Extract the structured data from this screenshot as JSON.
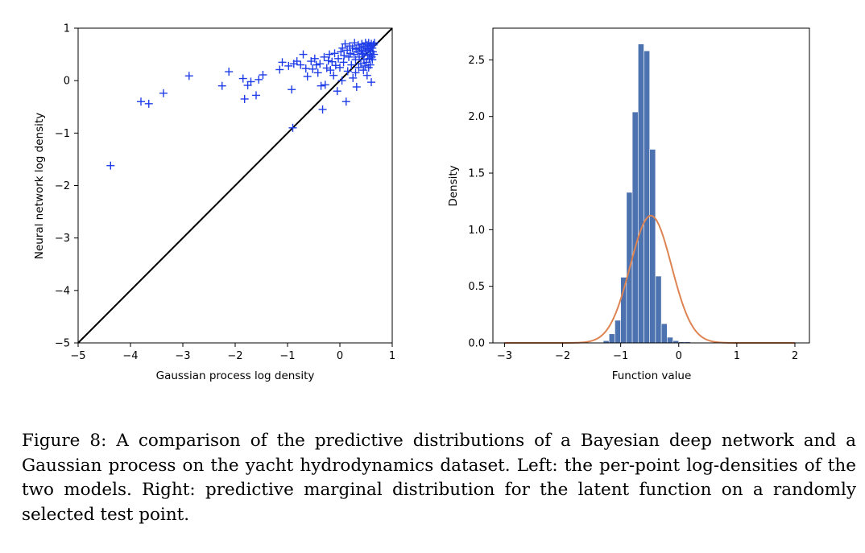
{
  "chart_data": [
    {
      "type": "scatter",
      "xlabel": "Gaussian process log density",
      "ylabel": "Neural network log density",
      "xlim": [
        -5,
        1
      ],
      "ylim": [
        -5,
        1
      ],
      "xticks": [
        -5,
        -4,
        -3,
        -2,
        -1,
        0,
        1
      ],
      "yticks": [
        -5,
        -4,
        -3,
        -2,
        -1,
        0,
        1
      ],
      "marker": "+",
      "marker_color": "#1f3de8",
      "reference_line": {
        "x": [
          -5,
          1
        ],
        "y": [
          -5,
          1
        ],
        "color": "#000000"
      },
      "grid": false,
      "points": [
        [
          -4.38,
          -1.62
        ],
        [
          -3.8,
          -0.4
        ],
        [
          -3.65,
          -0.44
        ],
        [
          -3.37,
          -0.24
        ],
        [
          -2.88,
          0.09
        ],
        [
          -2.25,
          -0.1
        ],
        [
          -2.12,
          0.17
        ],
        [
          -1.85,
          0.04
        ],
        [
          -1.82,
          -0.35
        ],
        [
          -1.76,
          -0.09
        ],
        [
          -1.7,
          -0.02
        ],
        [
          -1.6,
          -0.28
        ],
        [
          -1.55,
          0.02
        ],
        [
          -1.47,
          0.11
        ],
        [
          -1.15,
          0.21
        ],
        [
          -1.1,
          0.35
        ],
        [
          -0.98,
          0.28
        ],
        [
          -0.92,
          -0.17
        ],
        [
          -0.9,
          -0.9
        ],
        [
          -0.88,
          0.32
        ],
        [
          -0.82,
          0.37
        ],
        [
          -0.75,
          0.3
        ],
        [
          -0.7,
          0.5
        ],
        [
          -0.65,
          0.23
        ],
        [
          -0.62,
          0.08
        ],
        [
          -0.55,
          0.37
        ],
        [
          -0.52,
          0.22
        ],
        [
          -0.48,
          0.42
        ],
        [
          -0.45,
          0.3
        ],
        [
          -0.42,
          0.15
        ],
        [
          -0.38,
          0.32
        ],
        [
          -0.36,
          -0.1
        ],
        [
          -0.33,
          -0.55
        ],
        [
          -0.3,
          0.45
        ],
        [
          -0.28,
          -0.08
        ],
        [
          -0.25,
          0.24
        ],
        [
          -0.22,
          0.38
        ],
        [
          -0.2,
          0.5
        ],
        [
          -0.18,
          0.2
        ],
        [
          -0.15,
          0.36
        ],
        [
          -0.12,
          0.1
        ],
        [
          -0.1,
          0.52
        ],
        [
          -0.08,
          0.29
        ],
        [
          -0.05,
          -0.2
        ],
        [
          -0.03,
          0.42
        ],
        [
          0.0,
          0.25
        ],
        [
          0.02,
          0.55
        ],
        [
          0.04,
          0.0
        ],
        [
          0.05,
          0.62
        ],
        [
          0.07,
          0.35
        ],
        [
          0.08,
          0.48
        ],
        [
          0.1,
          0.7
        ],
        [
          0.12,
          -0.4
        ],
        [
          0.14,
          0.58
        ],
        [
          0.15,
          0.18
        ],
        [
          0.17,
          0.45
        ],
        [
          0.19,
          0.66
        ],
        [
          0.2,
          0.52
        ],
        [
          0.22,
          0.3
        ],
        [
          0.24,
          0.62
        ],
        [
          0.25,
          0.05
        ],
        [
          0.27,
          0.5
        ],
        [
          0.28,
          0.72
        ],
        [
          0.3,
          0.4
        ],
        [
          0.31,
          0.6
        ],
        [
          0.32,
          -0.12
        ],
        [
          0.34,
          0.55
        ],
        [
          0.35,
          0.68
        ],
        [
          0.37,
          0.45
        ],
        [
          0.38,
          0.62
        ],
        [
          0.4,
          0.32
        ],
        [
          0.41,
          0.58
        ],
        [
          0.42,
          0.7
        ],
        [
          0.44,
          0.5
        ],
        [
          0.45,
          0.65
        ],
        [
          0.46,
          0.4
        ],
        [
          0.48,
          0.62
        ],
        [
          0.49,
          0.72
        ],
        [
          0.5,
          0.55
        ],
        [
          0.51,
          0.35
        ],
        [
          0.52,
          0.68
        ],
        [
          0.53,
          0.48
        ],
        [
          0.54,
          0.6
        ],
        [
          0.55,
          0.72
        ],
        [
          0.56,
          0.42
        ],
        [
          0.57,
          0.58
        ],
        [
          0.58,
          0.66
        ],
        [
          0.59,
          0.5
        ],
        [
          0.6,
          0.7
        ],
        [
          0.61,
          0.45
        ],
        [
          0.62,
          0.62
        ],
        [
          0.63,
          0.55
        ],
        [
          0.64,
          0.68
        ],
        [
          0.65,
          0.5
        ],
        [
          0.66,
          0.72
        ],
        [
          0.6,
          -0.03
        ],
        [
          0.52,
          0.1
        ],
        [
          0.45,
          0.2
        ],
        [
          0.36,
          0.25
        ],
        [
          0.3,
          0.15
        ],
        [
          0.58,
          0.3
        ],
        [
          0.62,
          0.4
        ],
        [
          0.48,
          0.28
        ],
        [
          0.42,
          0.52
        ],
        [
          0.55,
          0.25
        ]
      ]
    },
    {
      "type": "bar",
      "subtype": "histogram_with_density_curve",
      "xlabel": "Function value",
      "ylabel": "Density",
      "xlim": [
        -3.2,
        2.25
      ],
      "ylim": [
        0,
        2.78
      ],
      "xticks": [
        -3,
        -2,
        -1,
        0,
        1,
        2
      ],
      "yticks": [
        0.0,
        0.5,
        1.0,
        1.5,
        2.0,
        2.5
      ],
      "ytick_labels": [
        "0.0",
        "0.5",
        "1.0",
        "1.5",
        "2.0",
        "2.5"
      ],
      "grid": false,
      "histogram": {
        "color": "#4c72b0",
        "bin_edges": [
          -1.3,
          -1.2,
          -1.1,
          -1.0,
          -0.9,
          -0.8,
          -0.7,
          -0.6,
          -0.5,
          -0.4,
          -0.3,
          -0.2,
          -0.1,
          0.0,
          0.1,
          0.2
        ],
        "values": [
          0.02,
          0.08,
          0.2,
          0.58,
          1.33,
          2.04,
          2.64,
          2.58,
          1.71,
          0.59,
          0.17,
          0.05,
          0.02,
          0.01,
          0.01
        ]
      },
      "density_curve": {
        "color": "#dd8452",
        "mean": -0.48,
        "std": 0.355
      }
    }
  ],
  "caption": {
    "text": "Figure 8:   A comparison of the predictive distributions of a Bayesian deep network and a Gaussian process on the yacht hydrodynamics dataset. Left: the per-point log-densities of the two models. Right: predictive marginal distribution for the latent function on a randomly selected test point."
  }
}
